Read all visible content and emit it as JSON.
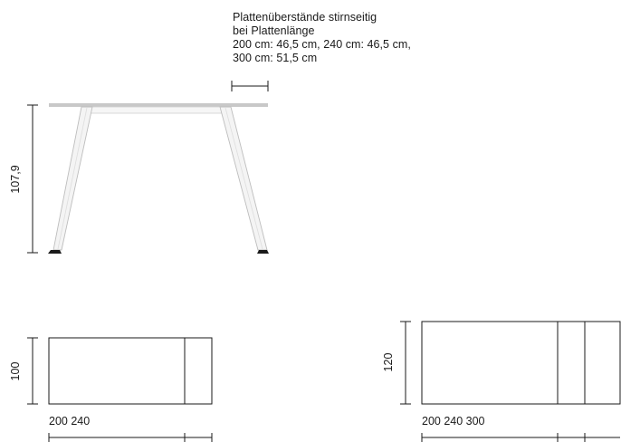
{
  "overhang_note": {
    "line1": "Plattenüberstände stirnseitig",
    "line2": "bei Plattenlänge",
    "line3": "200 cm: 46,5 cm, 240 cm: 46,5 cm,",
    "line4": "300 cm: 51,5 cm"
  },
  "side_view": {
    "height_label": "107,9"
  },
  "plan_small": {
    "depth_label": "100",
    "length_label": "200 240"
  },
  "plan_large": {
    "depth_label": "120",
    "length_label": "200 240 300"
  },
  "colors": {
    "line": "#1a1a1a",
    "tabletop": "#c8c8c8",
    "leg_fill": "#f4f4f4",
    "leg_stroke": "#bdbdbd"
  }
}
